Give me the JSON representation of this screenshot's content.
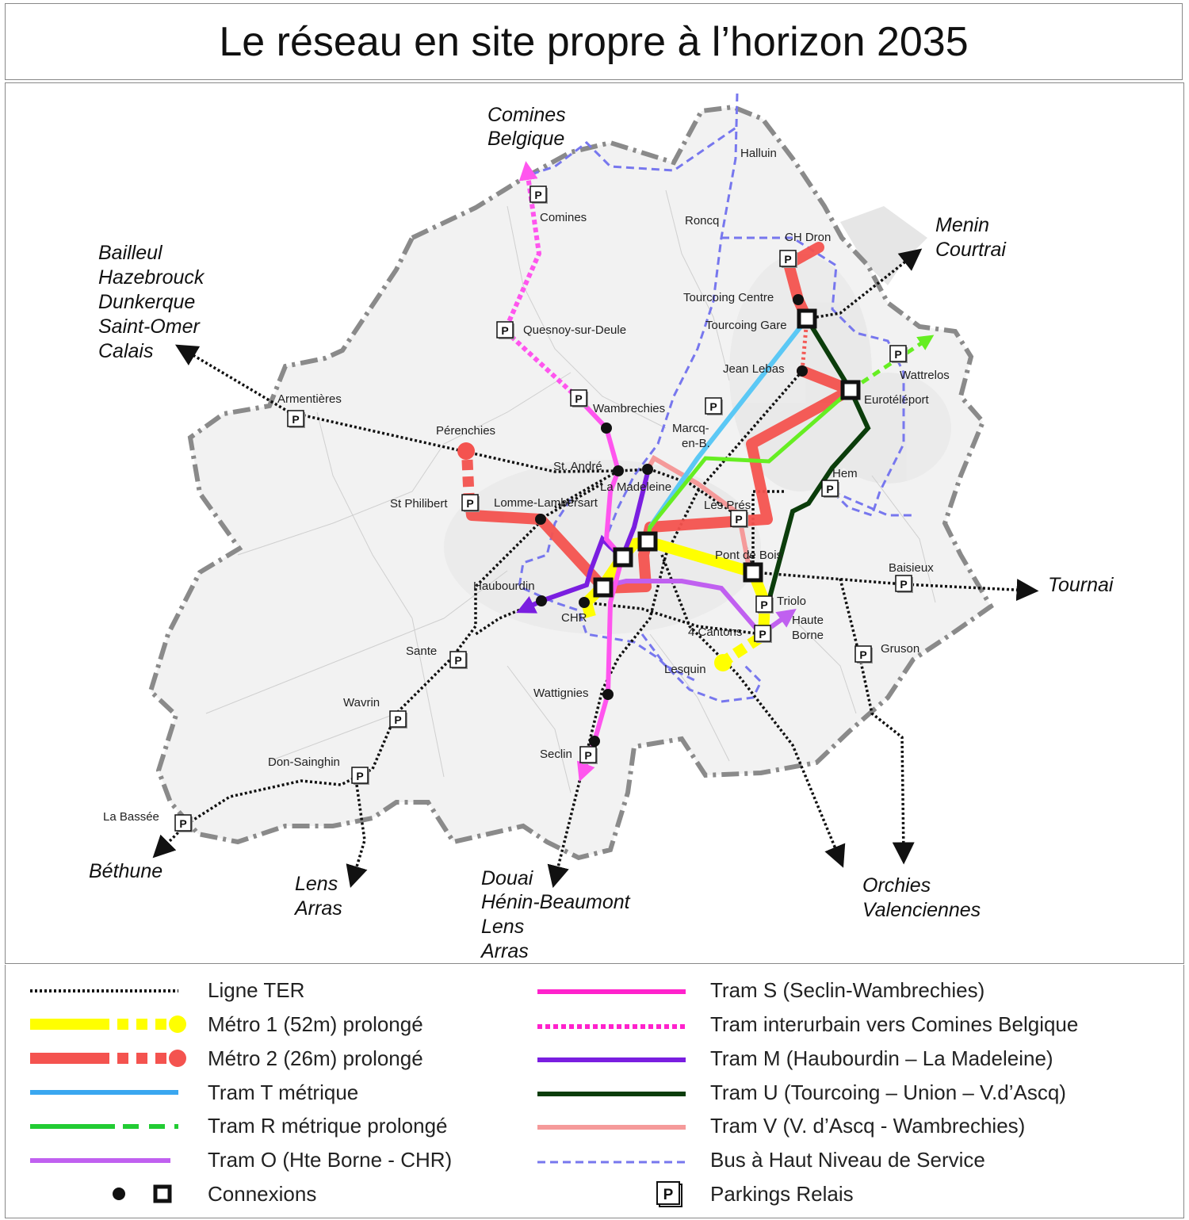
{
  "title": "Le réseau en site propre à l’horizon 2035",
  "destinations": {
    "comines_belgique": [
      "Comines",
      "Belgique"
    ],
    "menin_courtrai": [
      "Menin",
      "Courtrai"
    ],
    "bailleul": [
      "Bailleul",
      "Hazebrouck",
      "Dunkerque",
      "Saint-Omer",
      "Calais"
    ],
    "tournai": [
      "Tournai"
    ],
    "bethune": [
      "Béthune"
    ],
    "lens_arras": [
      "Lens",
      "Arras"
    ],
    "douai": [
      "Douai",
      "Hénin-Beaumont",
      "Lens",
      "Arras"
    ],
    "orchies": [
      "Orchies",
      "Valenciennes"
    ]
  },
  "places": {
    "halluin": "Halluin",
    "comines": "Comines",
    "roncq": "Roncq",
    "ch_dron": "CH Dron",
    "tourcoing_centre": "Tourcoing Centre",
    "tourcoing_gare": "Tourcoing Gare",
    "quesnoy": "Quesnoy-sur-Deule",
    "jean_lebas": "Jean Lebas",
    "wattrelos": "Wattrelos",
    "armentieres": "Armentières",
    "euroteleport": "Eurotéléport",
    "wambrechies": "Wambrechies",
    "marcq_1": "Marcq-",
    "marcq_2": "en-B.",
    "perenchies": "Pérenchies",
    "st_andre": "St. André",
    "hem": "Hem",
    "la_madeleine": "La Madeleine",
    "st_philibert": "St Philibert",
    "lomme": "Lomme-Lambersart",
    "les_pres": "Les Prés",
    "pont_de_bois": "Pont de Bois",
    "baisieux": "Baisieux",
    "haubourdin": "Haubourdin",
    "triolo": "Triolo",
    "chr": "CHR",
    "haute_borne_1": "Haute",
    "haute_borne_2": "Borne",
    "quatre_cantons": "4 Cantons",
    "sante": "Sante",
    "gruson": "Gruson",
    "lesquin": "Lesquin",
    "wattignies": "Wattignies",
    "wavrin": "Wavrin",
    "seclin": "Seclin",
    "don_sainghin": "Don-Sainghin",
    "la_bassee": "La Bassée"
  },
  "parking_label": "P",
  "colors": {
    "ter": "#111111",
    "metro1": "#ffff00",
    "metro2": "#f4534f",
    "tram_t": "#3aa7f0",
    "tram_r": "#22cc33",
    "tram_r_map": "#66ee22",
    "tram_o": "#c060f0",
    "tram_s": "#ff22cc",
    "tram_s_map": "#ff55ee",
    "tram_m": "#7a1ee0",
    "tram_u": "#0b3d0b",
    "tram_v": "#f59a9a",
    "bhns": "#7777ee"
  },
  "legend": {
    "left": [
      {
        "label": "Ligne TER",
        "icon": "ter-line"
      },
      {
        "label": "Métro 1 (52m) prolongé",
        "icon": "metro1-line"
      },
      {
        "label": "Métro 2 (26m) prolongé",
        "icon": "metro2-line"
      },
      {
        "label": "Tram T métrique",
        "icon": "tram-t-line"
      },
      {
        "label": "Tram R métrique prolongé",
        "icon": "tram-r-line"
      },
      {
        "label": "Tram O (Hte Borne - CHR)",
        "icon": "tram-o-line"
      },
      {
        "label": "Connexions",
        "icon": "connection-icons"
      }
    ],
    "right": [
      {
        "label": "Tram S (Seclin-Wambrechies)",
        "icon": "tram-s-line"
      },
      {
        "label": "Tram interurbain vers Comines Belgique",
        "icon": "tram-interurbain-line"
      },
      {
        "label": "Tram M (Haubourdin – La Madeleine)",
        "icon": "tram-m-line"
      },
      {
        "label": "Tram U (Tourcoing – Union – V.d’Ascq)",
        "icon": "tram-u-line"
      },
      {
        "label": "Tram V (V. d’Ascq - Wambrechies)",
        "icon": "tram-v-line"
      },
      {
        "label": "Bus à Haut Niveau de Service",
        "icon": "bhns-line"
      },
      {
        "label": "Parkings Relais",
        "icon": "parking-icon"
      }
    ]
  }
}
